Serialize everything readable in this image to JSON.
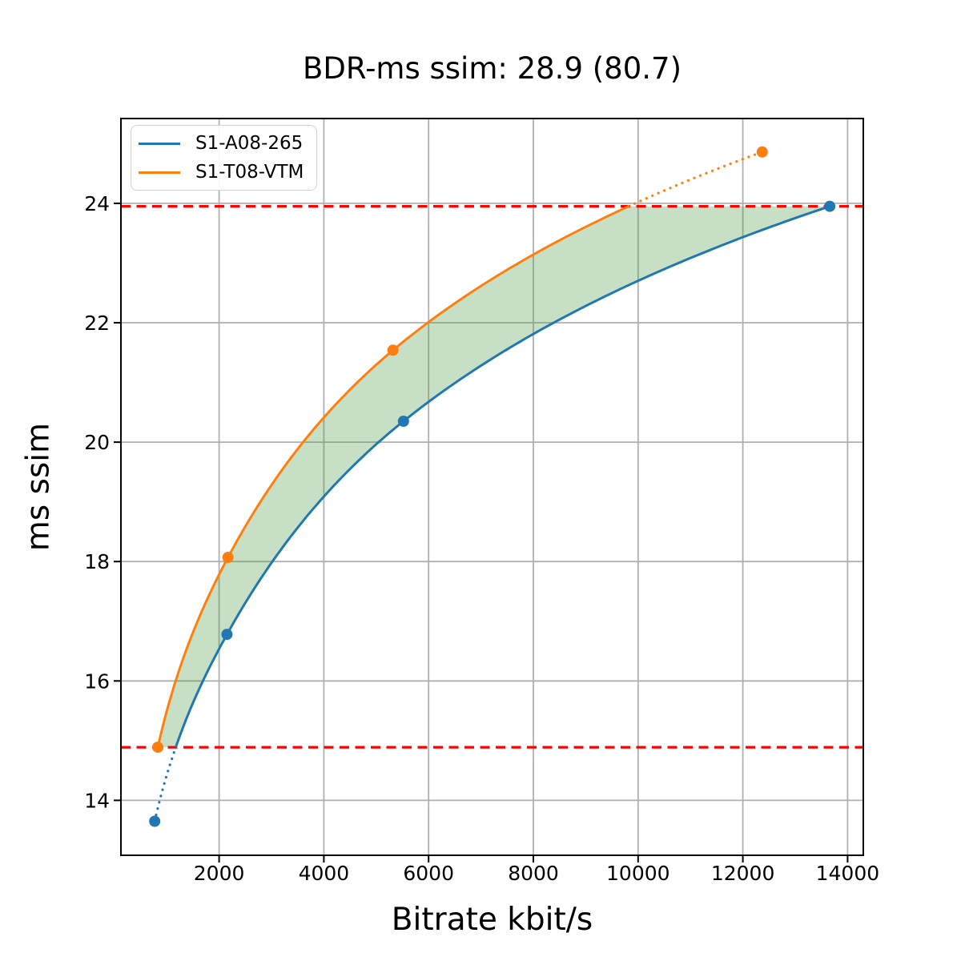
{
  "chart_data": {
    "type": "line",
    "title": "BDR-ms ssim: 28.9 (80.7)",
    "xlabel": "Bitrate kbit/s",
    "ylabel": "ms ssim",
    "xlim": [
      125,
      14300
    ],
    "ylim": [
      13.08,
      25.42
    ],
    "xticks": [
      2000,
      4000,
      6000,
      8000,
      10000,
      12000,
      14000
    ],
    "yticks": [
      14,
      16,
      18,
      20,
      22,
      24
    ],
    "grid": true,
    "legend_position": "upper left",
    "series": [
      {
        "name": "S1-A08-265",
        "color": "#1f77b4",
        "x": [
          770,
          2150,
          5520,
          13660
        ],
        "y": [
          13.65,
          16.78,
          20.35,
          23.95
        ]
      },
      {
        "name": "S1-T08-VTM",
        "color": "#ff7f0e",
        "x": [
          830,
          2170,
          5320,
          12370
        ],
        "y": [
          14.89,
          18.07,
          21.54,
          24.86
        ]
      }
    ],
    "overlap_interval": {
      "low": 14.89,
      "high": 23.95,
      "line_color": "#ff0000",
      "line_style": "dashed"
    },
    "fill_between_color": "rgba(70,150,60,0.30)",
    "bdr_title_values": {
      "bdr": "28.9",
      "percent": "80.7"
    }
  }
}
